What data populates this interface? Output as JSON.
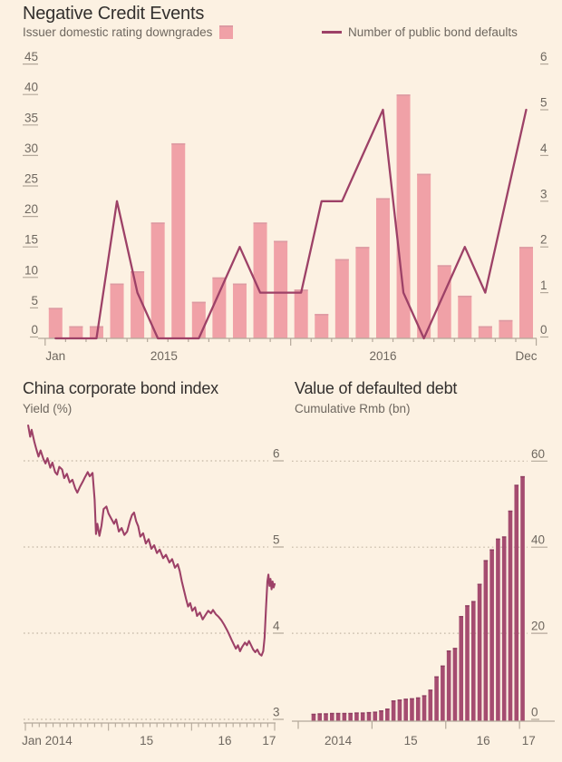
{
  "header": {
    "title": "Negative Credit Events"
  },
  "legend": {
    "bars_label": "Issuer domestic rating downgrades",
    "line_label": "Number of public bond defaults"
  },
  "palette": {
    "background": "#fcf1e2",
    "title_color": "#33302e",
    "text_color": "#6e675f",
    "axis_color": "#b3a89a",
    "grid_dot_color": "#c3b7a5",
    "bar_pink": "#f0a1a7",
    "bar_pink_cap": "#dd9aa2",
    "maroon_line": "#9d4167",
    "bar_maroon": "#a54c70",
    "bar_maroon_cap": "#8e3f61"
  },
  "chart_data": [
    {
      "id": "negative-credit-events",
      "type": "bar+line",
      "title": "Negative Credit Events",
      "x_range": "Jan 2015 - Dec 2016",
      "months": 24,
      "series": [
        {
          "name": "Issuer domestic rating downgrades",
          "type": "bar",
          "axis": "left",
          "values": [
            5,
            2,
            2,
            9,
            11,
            19,
            32,
            6,
            10,
            9,
            19,
            16,
            8,
            4,
            13,
            15,
            23,
            40,
            27,
            12,
            7,
            2,
            3,
            15
          ]
        },
        {
          "name": "Number of public bond defaults",
          "type": "line",
          "axis": "right",
          "values": [
            0,
            0,
            0,
            3,
            1,
            0,
            0,
            0,
            1,
            2,
            1,
            1,
            1,
            3,
            3,
            4,
            5,
            1,
            0,
            1,
            2,
            1,
            3,
            5
          ]
        }
      ],
      "left_axis": {
        "ticks": [
          0,
          5,
          10,
          15,
          20,
          25,
          30,
          35,
          40,
          45
        ],
        "max": 45
      },
      "right_axis": {
        "ticks": [
          0,
          1,
          2,
          3,
          4,
          5,
          6
        ],
        "max": 6
      },
      "x_labels": [
        {
          "text": "Jan",
          "month": 0
        },
        {
          "text": "2015",
          "month": 5.3
        },
        {
          "text": "2016",
          "month": 16
        },
        {
          "text": "Dec",
          "month": 23
        }
      ],
      "long_ticks": [
        0,
        12,
        24
      ]
    },
    {
      "id": "china-corporate-bond-index",
      "type": "line",
      "title": "China corporate bond index",
      "subtitle": "Yield (%)",
      "x_range": "Jan 2014 - early 2017",
      "months": 36,
      "y_axis": {
        "ticks": [
          3,
          4,
          5,
          6
        ],
        "min": 3,
        "max": 6,
        "side": "right"
      },
      "x_labels": [
        {
          "text": "Jan 2014",
          "month": -0.5,
          "anchor": "start"
        },
        {
          "text": "15",
          "month": 17.5
        },
        {
          "text": "16",
          "month": 28.8
        },
        {
          "text": "17",
          "month": 35.2
        }
      ],
      "long_ticks": [
        0,
        12,
        24,
        36
      ],
      "points": [
        [
          0.4,
          6.41
        ],
        [
          0.7,
          6.28
        ],
        [
          0.9,
          6.36
        ],
        [
          1.3,
          6.22
        ],
        [
          1.6,
          6.13
        ],
        [
          1.9,
          6.05
        ],
        [
          2.2,
          6.12
        ],
        [
          2.6,
          6.02
        ],
        [
          2.9,
          5.97
        ],
        [
          3.2,
          6.03
        ],
        [
          3.6,
          5.92
        ],
        [
          3.9,
          5.98
        ],
        [
          4.3,
          5.87
        ],
        [
          4.6,
          5.84
        ],
        [
          4.9,
          5.93
        ],
        [
          5.3,
          5.9
        ],
        [
          5.6,
          5.8
        ],
        [
          6.0,
          5.85
        ],
        [
          6.4,
          5.75
        ],
        [
          6.8,
          5.78
        ],
        [
          7.2,
          5.68
        ],
        [
          7.5,
          5.63
        ],
        [
          7.9,
          5.7
        ],
        [
          8.3,
          5.76
        ],
        [
          8.6,
          5.81
        ],
        [
          9.0,
          5.87
        ],
        [
          9.3,
          5.82
        ],
        [
          9.7,
          5.86
        ],
        [
          10.0,
          5.55
        ],
        [
          10.2,
          5.15
        ],
        [
          10.4,
          5.27
        ],
        [
          10.7,
          5.13
        ],
        [
          11.0,
          5.25
        ],
        [
          11.3,
          5.44
        ],
        [
          11.7,
          5.47
        ],
        [
          12.0,
          5.39
        ],
        [
          12.4,
          5.33
        ],
        [
          12.8,
          5.27
        ],
        [
          13.1,
          5.32
        ],
        [
          13.5,
          5.18
        ],
        [
          13.9,
          5.22
        ],
        [
          14.3,
          5.14
        ],
        [
          14.7,
          5.18
        ],
        [
          15.1,
          5.3
        ],
        [
          15.4,
          5.37
        ],
        [
          15.7,
          5.4
        ],
        [
          16.0,
          5.3
        ],
        [
          16.3,
          5.24
        ],
        [
          16.6,
          5.12
        ],
        [
          17.0,
          5.16
        ],
        [
          17.4,
          5.04
        ],
        [
          17.8,
          5.09
        ],
        [
          18.2,
          4.98
        ],
        [
          18.6,
          5.02
        ],
        [
          19.0,
          4.93
        ],
        [
          19.4,
          4.97
        ],
        [
          19.9,
          4.87
        ],
        [
          20.3,
          4.91
        ],
        [
          20.8,
          4.82
        ],
        [
          21.2,
          4.86
        ],
        [
          21.6,
          4.76
        ],
        [
          22.0,
          4.8
        ],
        [
          22.3,
          4.72
        ],
        [
          22.6,
          4.6
        ],
        [
          22.9,
          4.5
        ],
        [
          23.2,
          4.4
        ],
        [
          23.5,
          4.31
        ],
        [
          23.8,
          4.35
        ],
        [
          24.1,
          4.26
        ],
        [
          24.5,
          4.3
        ],
        [
          24.8,
          4.2
        ],
        [
          25.2,
          4.24
        ],
        [
          25.6,
          4.16
        ],
        [
          26.0,
          4.21
        ],
        [
          26.4,
          4.26
        ],
        [
          26.8,
          4.23
        ],
        [
          27.1,
          4.27
        ],
        [
          27.5,
          4.22
        ],
        [
          27.9,
          4.19
        ],
        [
          28.3,
          4.15
        ],
        [
          28.7,
          4.1
        ],
        [
          29.1,
          4.04
        ],
        [
          29.4,
          3.99
        ],
        [
          29.8,
          3.92
        ],
        [
          30.1,
          3.87
        ],
        [
          30.4,
          3.82
        ],
        [
          30.7,
          3.86
        ],
        [
          31.0,
          3.79
        ],
        [
          31.3,
          3.84
        ],
        [
          31.7,
          3.89
        ],
        [
          32.0,
          3.86
        ],
        [
          32.3,
          3.91
        ],
        [
          32.6,
          3.86
        ],
        [
          32.9,
          3.81
        ],
        [
          33.2,
          3.78
        ],
        [
          33.5,
          3.81
        ],
        [
          33.8,
          3.76
        ],
        [
          34.1,
          3.74
        ],
        [
          34.35,
          3.79
        ],
        [
          34.55,
          3.95
        ],
        [
          34.75,
          4.3
        ],
        [
          34.95,
          4.6
        ],
        [
          35.1,
          4.68
        ],
        [
          35.25,
          4.55
        ],
        [
          35.4,
          4.63
        ],
        [
          35.55,
          4.51
        ],
        [
          35.7,
          4.6
        ],
        [
          35.85,
          4.53
        ],
        [
          36.0,
          4.57
        ]
      ]
    },
    {
      "id": "value-of-defaulted-debt",
      "type": "bar",
      "title": "Value of defaulted debt",
      "subtitle": "Cumulative Rmb (bn)",
      "x_range": "Mar 2014 - Jan 2017",
      "months": 36,
      "start_month": 2,
      "values": [
        1.3,
        1.4,
        1.4,
        1.5,
        1.5,
        1.5,
        1.5,
        1.6,
        1.6,
        1.7,
        1.8,
        2.1,
        2.5,
        4.4,
        4.6,
        4.8,
        4.9,
        5.1,
        5.6,
        6.9,
        10,
        12.5,
        16,
        16.6,
        24,
        26.5,
        27.5,
        31.5,
        37,
        39.5,
        42,
        42.5,
        48.5,
        54.5,
        56.5
      ],
      "y_axis": {
        "ticks": [
          0,
          20,
          40,
          60
        ],
        "max": 60,
        "side": "right"
      },
      "x_labels": [
        {
          "text": "2014",
          "month": 6.5
        },
        {
          "text": "15",
          "month": 18.3
        },
        {
          "text": "16",
          "month": 30.1
        },
        {
          "text": "17",
          "month": 37.5
        }
      ],
      "long_ticks": [
        0,
        12,
        24,
        36
      ]
    }
  ]
}
